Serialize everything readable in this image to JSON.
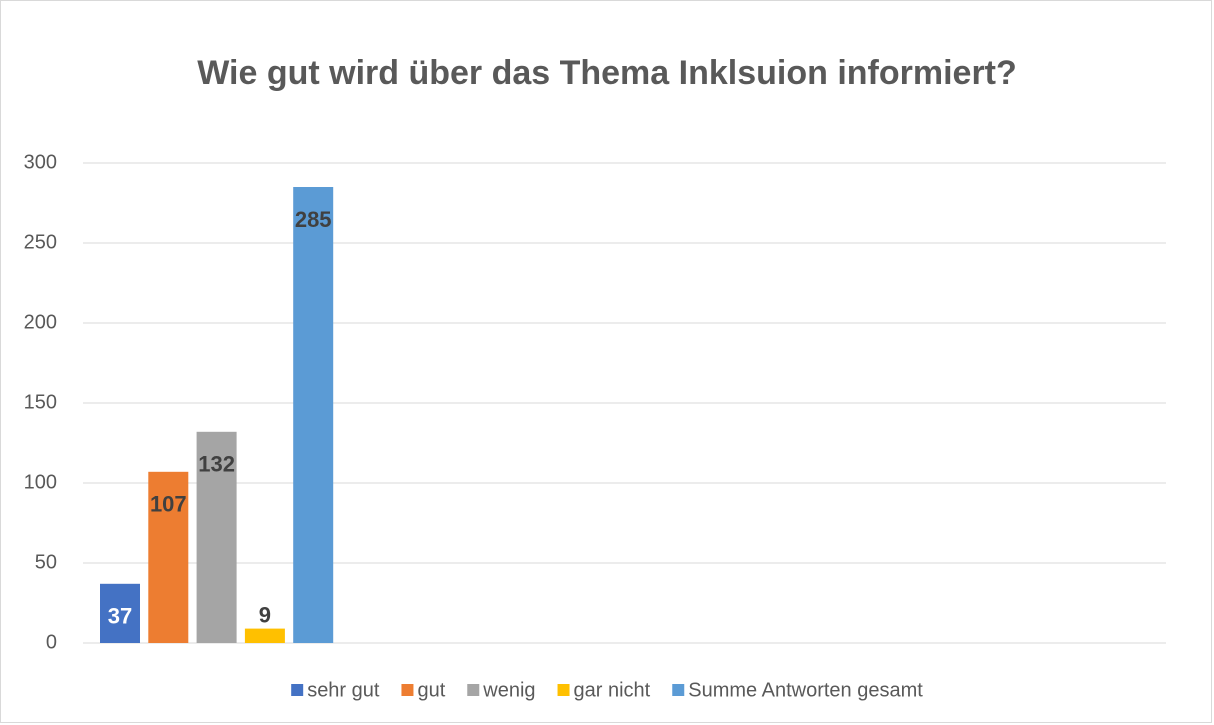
{
  "chart_data": {
    "type": "bar",
    "title": "Wie gut wird über das Thema Inklsuion informiert?",
    "categories": [
      null
    ],
    "series": [
      {
        "name": "sehr gut",
        "color": "#4472c4",
        "label_color": "#ffffff",
        "values": [
          37
        ]
      },
      {
        "name": "gut",
        "color": "#ed7d31",
        "label_color": "#404040",
        "values": [
          107
        ]
      },
      {
        "name": "wenig",
        "color": "#a5a5a5",
        "label_color": "#404040",
        "values": [
          132
        ]
      },
      {
        "name": "gar nicht",
        "color": "#ffc000",
        "label_color": "#404040",
        "values": [
          9
        ]
      },
      {
        "name": "Summe Antworten gesamt",
        "color": "#5b9bd5",
        "label_color": "#404040",
        "values": [
          285
        ]
      }
    ],
    "ylim": [
      0,
      300
    ],
    "yticks": [
      0,
      50,
      100,
      150,
      200,
      250,
      300
    ],
    "grid": true,
    "legend": "bottom"
  }
}
